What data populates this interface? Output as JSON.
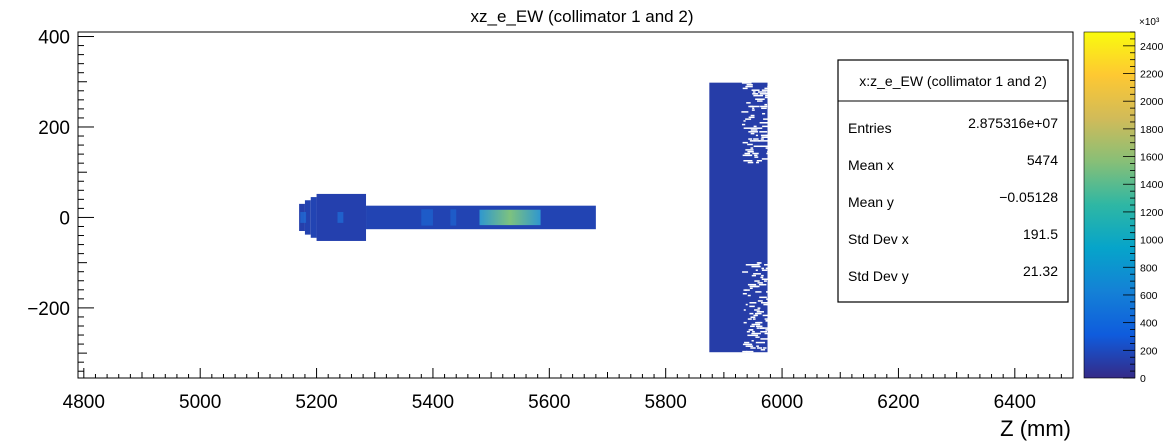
{
  "chart_data": {
    "type": "heatmap",
    "title": "xz_e_EW (collimator 1 and 2)",
    "xlabel": "Z (mm)",
    "ylabel": "",
    "xlim": [
      4790,
      6500
    ],
    "ylim": [
      -355,
      410
    ],
    "x_ticks": [
      4800,
      5000,
      5200,
      5400,
      5600,
      5800,
      6000,
      6200,
      6400
    ],
    "y_ticks": [
      400,
      200,
      0,
      -200
    ],
    "colorbar": {
      "min": 0,
      "max": 2500,
      "multiplier": "×10³",
      "ticks": [
        0,
        200,
        400,
        600,
        800,
        1000,
        1200,
        1400,
        1600,
        1800,
        2000,
        2200,
        2400
      ],
      "palette": [
        "#352a87",
        "#0f5cdd",
        "#1481d6",
        "#06a4ca",
        "#2eb7a4",
        "#87bf77",
        "#d1bb59",
        "#fec832",
        "#f9fb0e"
      ]
    },
    "regions": [
      {
        "name": "collimator-1-flange",
        "x": [
          5170,
          5180
        ],
        "y": [
          -30,
          30
        ],
        "value": 130
      },
      {
        "name": "collimator-1-flange",
        "x": [
          5180,
          5190
        ],
        "y": [
          -38,
          38
        ],
        "value": 150
      },
      {
        "name": "collimator-1-flange",
        "x": [
          5190,
          5200
        ],
        "y": [
          -45,
          45
        ],
        "value": 160
      },
      {
        "name": "collimator-1-flange",
        "x": [
          5200,
          5285
        ],
        "y": [
          -52,
          52
        ],
        "value": 140
      },
      {
        "name": "collimator-1-tube",
        "x": [
          5285,
          5680
        ],
        "y": [
          -26,
          26
        ],
        "value": 160
      },
      {
        "name": "collimator-1-tube-hot",
        "x": [
          5480,
          5585
        ],
        "y": [
          -17,
          17
        ],
        "value": 1100
      },
      {
        "name": "collimator-2",
        "x": [
          5875,
          5975
        ],
        "y": [
          -298,
          298
        ],
        "value": 120
      }
    ],
    "stats": {
      "title": "x:z_e_EW (collimator 1 and 2)",
      "rows": [
        {
          "label": "Entries",
          "value": "2.875316e+07"
        },
        {
          "label": "Mean x",
          "value": "5474"
        },
        {
          "label": "Mean y",
          "value": "−0.05128"
        },
        {
          "label": "Std Dev x",
          "value": "191.5"
        },
        {
          "label": "Std Dev y",
          "value": "21.32"
        }
      ]
    }
  }
}
